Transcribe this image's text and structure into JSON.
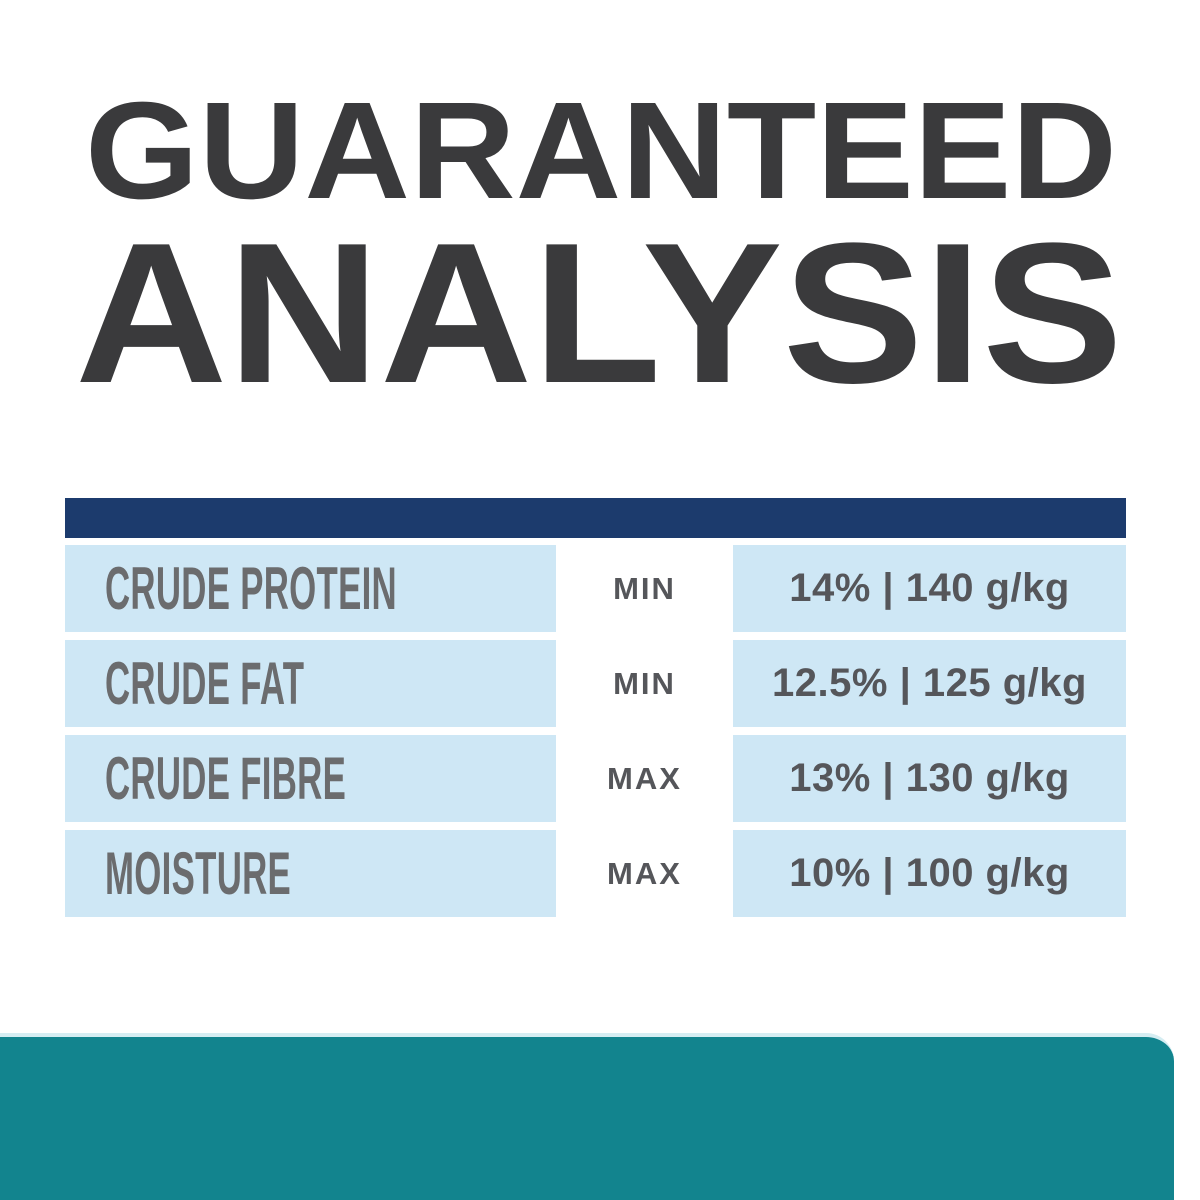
{
  "heading": {
    "line1": "GUARANTEED",
    "line2": "ANALYSIS"
  },
  "table": {
    "rows": [
      {
        "nutrient": "CRUDE PROTEIN",
        "qualifier": "MIN",
        "value": "14% | 140 g/kg"
      },
      {
        "nutrient": "CRUDE FAT",
        "qualifier": "MIN",
        "value": "12.5% | 125 g/kg"
      },
      {
        "nutrient": "CRUDE FIBRE",
        "qualifier": "MAX",
        "value": "13% | 130 g/kg"
      },
      {
        "nutrient": "MOISTURE",
        "qualifier": "MAX",
        "value": "10% | 100 g/kg"
      }
    ]
  },
  "colors": {
    "heading_text": "#3a3a3c",
    "header_bar_navy": "#1c3b6d",
    "row_light_blue": "#cee7f5",
    "nutrient_gray": "#6b6c6e",
    "value_gray": "#55565a",
    "footer_teal": "#12848e",
    "footer_top_edge": "#d5edf2",
    "background": "#ffffff"
  }
}
